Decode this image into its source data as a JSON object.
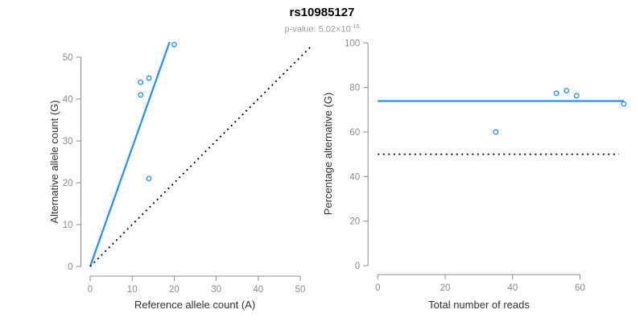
{
  "header": {
    "title": "rs10985127",
    "pvalue_prefix": "p-value: 5.02×10",
    "pvalue_exponent": "-16"
  },
  "colors": {
    "accent_blue": "#1e90ff",
    "dotted_black": "#000000",
    "axis_gray": "#8c8c8c",
    "tick_text_gray": "#8c8c8c",
    "axis_label_dark": "#333333",
    "subtitle_gray": "#9b9b9b",
    "background": "#ffffff"
  },
  "chart_data": [
    {
      "type": "scatter",
      "title": "",
      "xlabel": "Reference allele count (A)",
      "ylabel": "Alternative allele count (G)",
      "x_ticks": [
        0,
        10,
        20,
        30,
        40,
        50
      ],
      "y_ticks": [
        0,
        10,
        20,
        30,
        40,
        50
      ],
      "xlim": [
        -2.2,
        55.2
      ],
      "ylim": [
        -2.3,
        55.6
      ],
      "grid": false,
      "legend": null,
      "marker": "open-circle",
      "points": [
        {
          "x": 12,
          "y": 44
        },
        {
          "x": 14,
          "y": 45
        },
        {
          "x": 12,
          "y": 41
        },
        {
          "x": 14,
          "y": 21
        },
        {
          "x": 20,
          "y": 53
        }
      ],
      "lines": [
        {
          "name": "fit-line-alt-vs-ref",
          "style": "solid",
          "x1": 0,
          "y1": 0,
          "x2": 18.9,
          "y2": 53.6
        },
        {
          "name": "identity-line",
          "style": "dotted",
          "x1": 0,
          "y1": 0,
          "x2": 52.9,
          "y2": 52.9
        }
      ]
    },
    {
      "type": "scatter",
      "title": "",
      "xlabel": "Total number of reads",
      "ylabel": "Percentage alternative (G)",
      "x_ticks": [
        0,
        20,
        40,
        60
      ],
      "y_ticks": [
        0,
        20,
        40,
        60,
        80,
        100
      ],
      "xlim": [
        -2.9,
        75.9
      ],
      "ylim": [
        -4,
        104
      ],
      "grid": false,
      "legend": null,
      "marker": "open-circle",
      "points": [
        {
          "x": 56,
          "y": 78.6
        },
        {
          "x": 59,
          "y": 76.3
        },
        {
          "x": 53,
          "y": 77.4
        },
        {
          "x": 35,
          "y": 60.0
        },
        {
          "x": 73,
          "y": 72.6
        }
      ],
      "lines": [
        {
          "name": "mean-percentage-line",
          "style": "solid",
          "x1": 0,
          "y1": 73.9,
          "x2": 73,
          "y2": 73.9
        },
        {
          "name": "fifty-percent-line",
          "style": "dotted",
          "x1": 0,
          "y1": 50,
          "x2": 71.5,
          "y2": 50
        }
      ]
    }
  ]
}
